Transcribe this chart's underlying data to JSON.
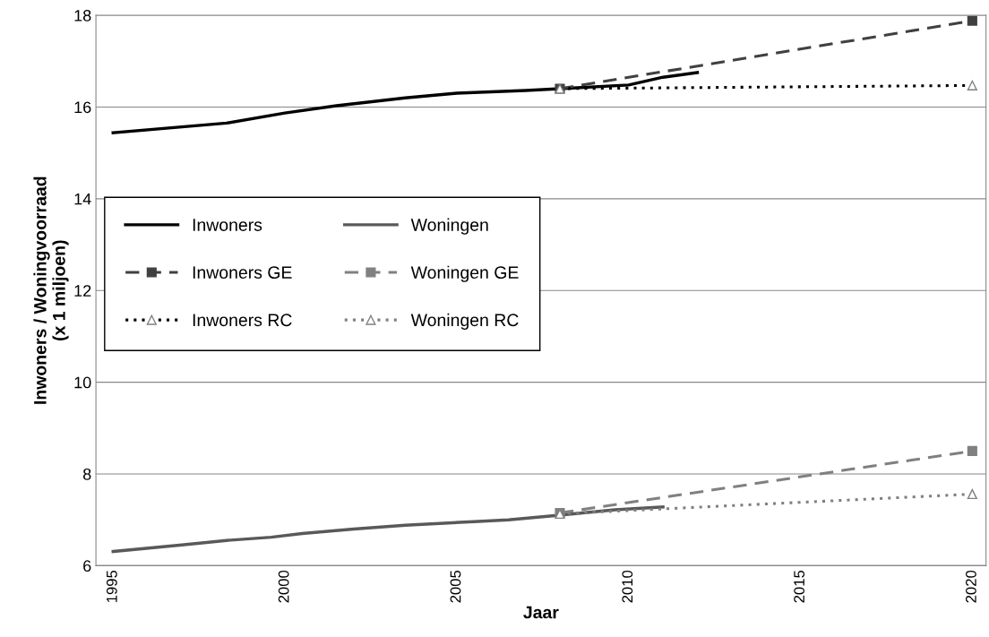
{
  "chart_data": {
    "type": "line",
    "xlabel": "Jaar",
    "ylabel": "Inwoners / Woningvoorraad\n(x 1 miljoen)",
    "xlim": [
      1994.5,
      2020.4
    ],
    "xticks": [
      1995,
      2000,
      2005,
      2010,
      2015,
      2020
    ],
    "ylim": [
      6,
      18
    ],
    "yticks": [
      6,
      8,
      10,
      12,
      14,
      16,
      18
    ],
    "grid": "y",
    "legend": "left",
    "series": [
      {
        "name": "Inwoners",
        "color": "#000000",
        "line_style": "solid",
        "marker": "none",
        "x": [
          1995,
          1998.3,
          2000,
          2001.5,
          2003.5,
          2005,
          2007,
          2008,
          2010,
          2011,
          2012
        ],
        "values": [
          15.44,
          15.65,
          15.87,
          16.03,
          16.2,
          16.3,
          16.36,
          16.4,
          16.48,
          16.65,
          16.75
        ]
      },
      {
        "name": "Inwoners GE",
        "color": "#404040",
        "line_style": "dashed",
        "marker": "square",
        "x": [
          2008,
          2020
        ],
        "values": [
          16.4,
          17.88
        ]
      },
      {
        "name": "Inwoners RC",
        "color": "#000000",
        "line_style": "dotted",
        "marker": "triangle",
        "x": [
          2008,
          2020
        ],
        "values": [
          16.4,
          16.47
        ]
      },
      {
        "name": "Woningen",
        "color": "#595959",
        "line_style": "solid",
        "marker": "none",
        "x": [
          1995,
          1997,
          1998.3,
          1999.6,
          2000.5,
          2002,
          2003.5,
          2005.5,
          2006.5,
          2008,
          2009.6,
          2011
        ],
        "values": [
          6.31,
          6.45,
          6.55,
          6.62,
          6.7,
          6.8,
          6.88,
          6.96,
          7.0,
          7.1,
          7.22,
          7.28
        ]
      },
      {
        "name": "Woningen GE",
        "color": "#808080",
        "line_style": "dashed",
        "marker": "square",
        "x": [
          2008,
          2020
        ],
        "values": [
          7.15,
          8.5
        ]
      },
      {
        "name": "Woningen RC",
        "color": "#808080",
        "line_style": "dotted",
        "marker": "triangle",
        "x": [
          2008,
          2020
        ],
        "values": [
          7.13,
          7.56
        ]
      }
    ]
  }
}
